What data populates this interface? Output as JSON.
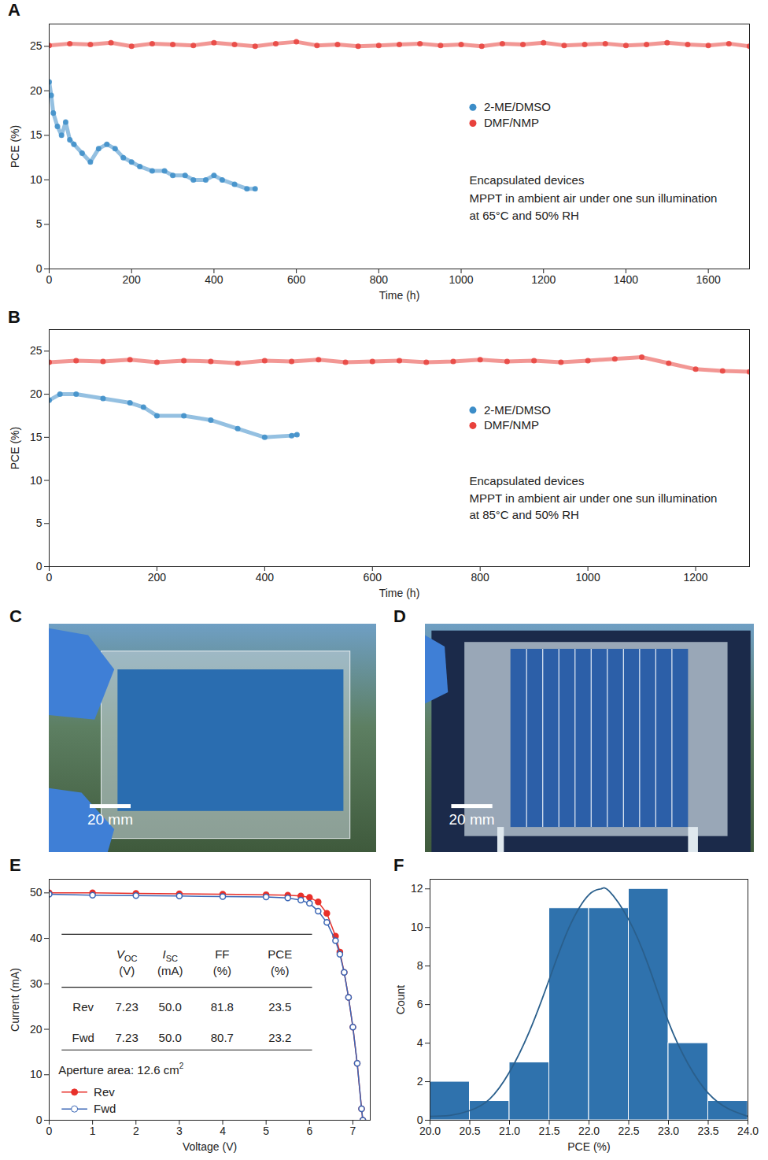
{
  "chart_data": [
    {
      "panel": "A",
      "type": "scatter",
      "xlabel": "Time (h)",
      "ylabel": "PCE (%)",
      "xlim": [
        0,
        1700
      ],
      "xticks": [
        0,
        200,
        400,
        600,
        800,
        1000,
        1200,
        1400,
        1600
      ],
      "ylim": [
        0,
        27.5
      ],
      "yticks": [
        0,
        5,
        10,
        15,
        20,
        25
      ],
      "grid": false,
      "legend": "right",
      "marker": "circle",
      "annotations": [
        "Encapsulated devices",
        "MPPT in ambient air under one sun illumination",
        "at 65°C and 50% RH"
      ],
      "series": [
        {
          "name": "2-ME/DMSO",
          "color": "#3c8dc8",
          "x": [
            0,
            5,
            10,
            20,
            30,
            40,
            50,
            60,
            80,
            100,
            120,
            140,
            160,
            180,
            200,
            220,
            250,
            280,
            300,
            330,
            350,
            380,
            400,
            420,
            450,
            480,
            500
          ],
          "values": [
            21,
            19.5,
            17.5,
            16,
            15,
            16.5,
            14.5,
            14,
            13,
            12,
            13.5,
            14,
            13.5,
            12.5,
            12,
            11.5,
            11,
            11,
            10.5,
            10.5,
            10,
            10,
            10.5,
            10,
            9.5,
            9,
            9
          ]
        },
        {
          "name": "DMF/NMP",
          "color": "#e8413c",
          "x": [
            0,
            50,
            100,
            150,
            200,
            250,
            300,
            350,
            400,
            450,
            500,
            550,
            600,
            650,
            700,
            750,
            800,
            850,
            900,
            950,
            1000,
            1050,
            1100,
            1150,
            1200,
            1250,
            1300,
            1350,
            1400,
            1450,
            1500,
            1550,
            1600,
            1650,
            1700
          ],
          "values": [
            25.1,
            25.3,
            25.2,
            25.4,
            25.0,
            25.3,
            25.2,
            25.1,
            25.4,
            25.2,
            25.0,
            25.3,
            25.5,
            25.1,
            25.2,
            25.0,
            25.1,
            25.2,
            25.3,
            25.1,
            25.2,
            25.0,
            25.3,
            25.2,
            25.4,
            25.1,
            25.2,
            25.3,
            25.1,
            25.2,
            25.4,
            25.2,
            25.1,
            25.3,
            25.0
          ]
        }
      ]
    },
    {
      "panel": "B",
      "type": "scatter",
      "xlabel": "Time (h)",
      "ylabel": "PCE (%)",
      "xlim": [
        0,
        1300
      ],
      "xticks": [
        0,
        200,
        400,
        600,
        800,
        1000,
        1200
      ],
      "ylim": [
        0,
        27.5
      ],
      "yticks": [
        0,
        5,
        10,
        15,
        20,
        25
      ],
      "grid": false,
      "legend": "right",
      "marker": "circle",
      "annotations": [
        "Encapsulated devices",
        "MPPT in ambient air under one sun illumination",
        "at 85°C and 50% RH"
      ],
      "series": [
        {
          "name": "2-ME/DMSO",
          "color": "#3c8dc8",
          "x": [
            0,
            20,
            50,
            100,
            150,
            175,
            200,
            250,
            300,
            350,
            400,
            450,
            460
          ],
          "values": [
            19.3,
            20,
            20,
            19.5,
            19,
            18.5,
            17.5,
            17.5,
            17,
            16,
            15,
            15.2,
            15.3
          ]
        },
        {
          "name": "DMF/NMP",
          "color": "#e8413c",
          "x": [
            0,
            50,
            100,
            150,
            200,
            250,
            300,
            350,
            400,
            450,
            500,
            550,
            600,
            650,
            700,
            750,
            800,
            850,
            900,
            950,
            1000,
            1050,
            1100,
            1150,
            1200,
            1250,
            1300
          ],
          "values": [
            23.7,
            23.9,
            23.8,
            24.0,
            23.7,
            23.9,
            23.8,
            23.6,
            23.9,
            23.8,
            24.0,
            23.7,
            23.8,
            23.9,
            23.7,
            23.8,
            24.0,
            23.8,
            23.9,
            23.7,
            23.9,
            24.1,
            24.3,
            23.6,
            22.9,
            22.7,
            22.6
          ]
        }
      ]
    },
    {
      "panel": "C",
      "type": "photo",
      "scale_bar": "20 mm"
    },
    {
      "panel": "D",
      "type": "photo",
      "scale_bar": "20 mm"
    },
    {
      "panel": "E",
      "type": "line",
      "xlabel": "Voltage (V)",
      "ylabel": "Current (mA)",
      "xlim": [
        0,
        7.4
      ],
      "xticks": [
        0,
        1,
        2,
        3,
        4,
        5,
        6,
        7
      ],
      "ylim": [
        0,
        53
      ],
      "yticks": [
        0,
        10,
        20,
        30,
        40,
        50
      ],
      "grid": false,
      "legend": "bottom-left",
      "series": [
        {
          "name": "Rev",
          "color": "#e8302a",
          "marker": "circle",
          "x": [
            0,
            1,
            2,
            3,
            4,
            5,
            5.5,
            5.8,
            6.0,
            6.2,
            6.4,
            6.6,
            6.7,
            6.8,
            6.9,
            7.0,
            7.1,
            7.2,
            7.23
          ],
          "values": [
            50.0,
            50.0,
            49.9,
            49.8,
            49.7,
            49.6,
            49.5,
            49.3,
            49.0,
            48.0,
            45.5,
            40.5,
            37,
            32.5,
            27,
            20.5,
            12.5,
            2.5,
            0
          ]
        },
        {
          "name": "Fwd",
          "color": "#3a66b5",
          "marker": "open circle",
          "x": [
            0,
            1,
            2,
            3,
            4,
            5,
            5.5,
            5.8,
            6.0,
            6.2,
            6.4,
            6.6,
            6.7,
            6.8,
            6.9,
            7.0,
            7.1,
            7.2,
            7.23
          ],
          "values": [
            49.7,
            49.5,
            49.4,
            49.3,
            49.2,
            49.1,
            48.9,
            48.4,
            47.7,
            46.0,
            43.5,
            39.5,
            36.5,
            32.5,
            27,
            20.5,
            12.5,
            2.5,
            0
          ]
        }
      ],
      "table": {
        "columns": [
          {
            "symbol": "V",
            "subscript": "OC",
            "unit": "(V)"
          },
          {
            "symbol": "I",
            "subscript": "SC",
            "unit": "(mA)"
          },
          {
            "symbol": "FF",
            "unit": "(%)"
          },
          {
            "symbol": "PCE",
            "unit": "(%)"
          }
        ],
        "rows": [
          {
            "label": "Rev",
            "cells": [
              "7.23",
              "50.0",
              "81.8",
              "23.5"
            ]
          },
          {
            "label": "Fwd",
            "cells": [
              "7.23",
              "50.0",
              "80.7",
              "23.2"
            ]
          }
        ]
      },
      "area_label": {
        "text": "Aperture area: 12.6 cm",
        "superscript": "2"
      }
    },
    {
      "panel": "F",
      "type": "histogram",
      "xlabel": "PCE (%)",
      "ylabel": "Count",
      "color": "#2f72ad",
      "bins": [
        20.0,
        20.5,
        21.0,
        21.5,
        22.0,
        22.5,
        23.0,
        23.5,
        24.0
      ],
      "values": [
        2,
        1,
        3,
        11,
        11,
        12,
        4,
        1
      ],
      "xlim": [
        20,
        24
      ],
      "xticks": [
        {
          "value": 20,
          "label": "20.0"
        },
        {
          "value": 20.5,
          "label": "20.5"
        },
        {
          "value": 21,
          "label": "21.0"
        },
        {
          "value": 21.5,
          "label": "21.5"
        },
        {
          "value": 22,
          "label": "22.0"
        },
        {
          "value": 22.5,
          "label": "22.5"
        },
        {
          "value": 23,
          "label": "23.0"
        },
        {
          "value": 23.5,
          "label": "23.5"
        },
        {
          "value": 24,
          "label": "24.0"
        }
      ],
      "ylim": [
        0,
        12.5
      ],
      "yticks": [
        0,
        2,
        4,
        6,
        8,
        10,
        12
      ],
      "grid": false,
      "fit": {
        "color": "#2a5f8c",
        "x": [
          20.0,
          20.25,
          20.5,
          20.75,
          21.0,
          21.25,
          21.5,
          21.75,
          22.0,
          22.15,
          22.25,
          22.5,
          22.75,
          23.0,
          23.25,
          23.5,
          23.75,
          24.0
        ],
        "values": [
          0.2,
          0.25,
          0.5,
          1.1,
          2.5,
          4.6,
          7.3,
          10.0,
          11.7,
          12.0,
          11.9,
          10.4,
          8.0,
          5.1,
          2.9,
          1.4,
          0.6,
          0.2
        ]
      }
    }
  ]
}
